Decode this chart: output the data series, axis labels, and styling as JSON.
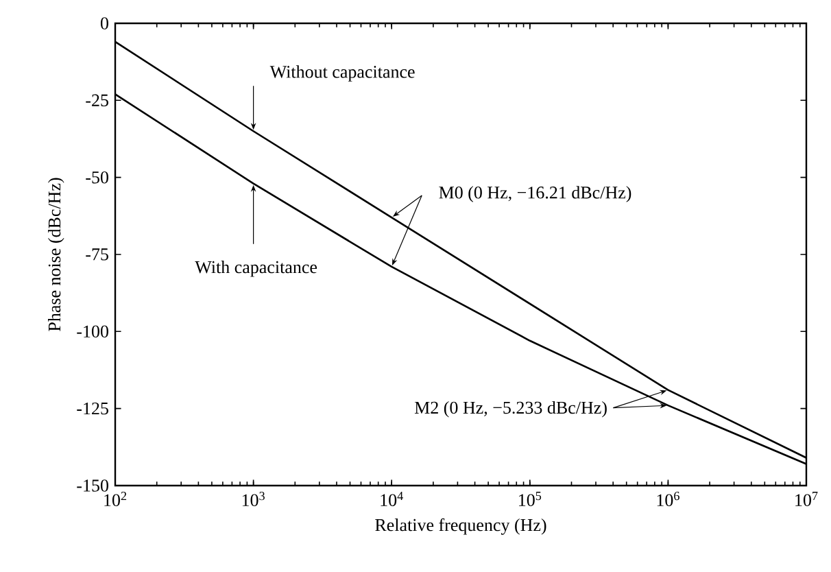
{
  "chart_data": {
    "type": "line",
    "xlabel": "Relative frequency (Hz)",
    "ylabel": "Phase noise (dBc/Hz)",
    "log": "x",
    "marker": "none",
    "line_style": "solid",
    "xlim": [
      100,
      10000000
    ],
    "ylim": [
      -150,
      0
    ],
    "xticks": [
      {
        "value": 100,
        "label": "10$^{2}$"
      },
      {
        "value": 1000,
        "label": "10$^{3}$"
      },
      {
        "value": 10000,
        "label": "10$^{4}$"
      },
      {
        "value": 100000,
        "label": "10$^{5}$"
      },
      {
        "value": 1000000,
        "label": "10$^{6}$"
      },
      {
        "value": 10000000,
        "label": "10$^{7}$"
      }
    ],
    "yticks": [
      -150,
      -125,
      -100,
      -75,
      -50,
      -25,
      0
    ],
    "x": [
      100,
      1000,
      10000,
      100000,
      1000000,
      10000000
    ],
    "series": [
      {
        "color": "#000000",
        "values": [
          -6,
          -35,
          -63,
          -91,
          -119,
          -141
        ]
      },
      {
        "color": "#000000",
        "values": [
          -23,
          -52,
          -79,
          -103,
          -124,
          -143
        ]
      }
    ],
    "annotations": [
      {
        "text": "Without capacitance",
        "x": 1000,
        "y": -35
      },
      {
        "text": "With capacitance",
        "x": 1000,
        "y": -52
      },
      {
        "text": "M0 (0 Hz, −16.21 dBc/Hz)",
        "x": 10000,
        "y": -63
      },
      {
        "text": "M2 (0 Hz, −5.233 dBc/Hz)",
        "x": 1000000,
        "y": -119
      }
    ]
  }
}
